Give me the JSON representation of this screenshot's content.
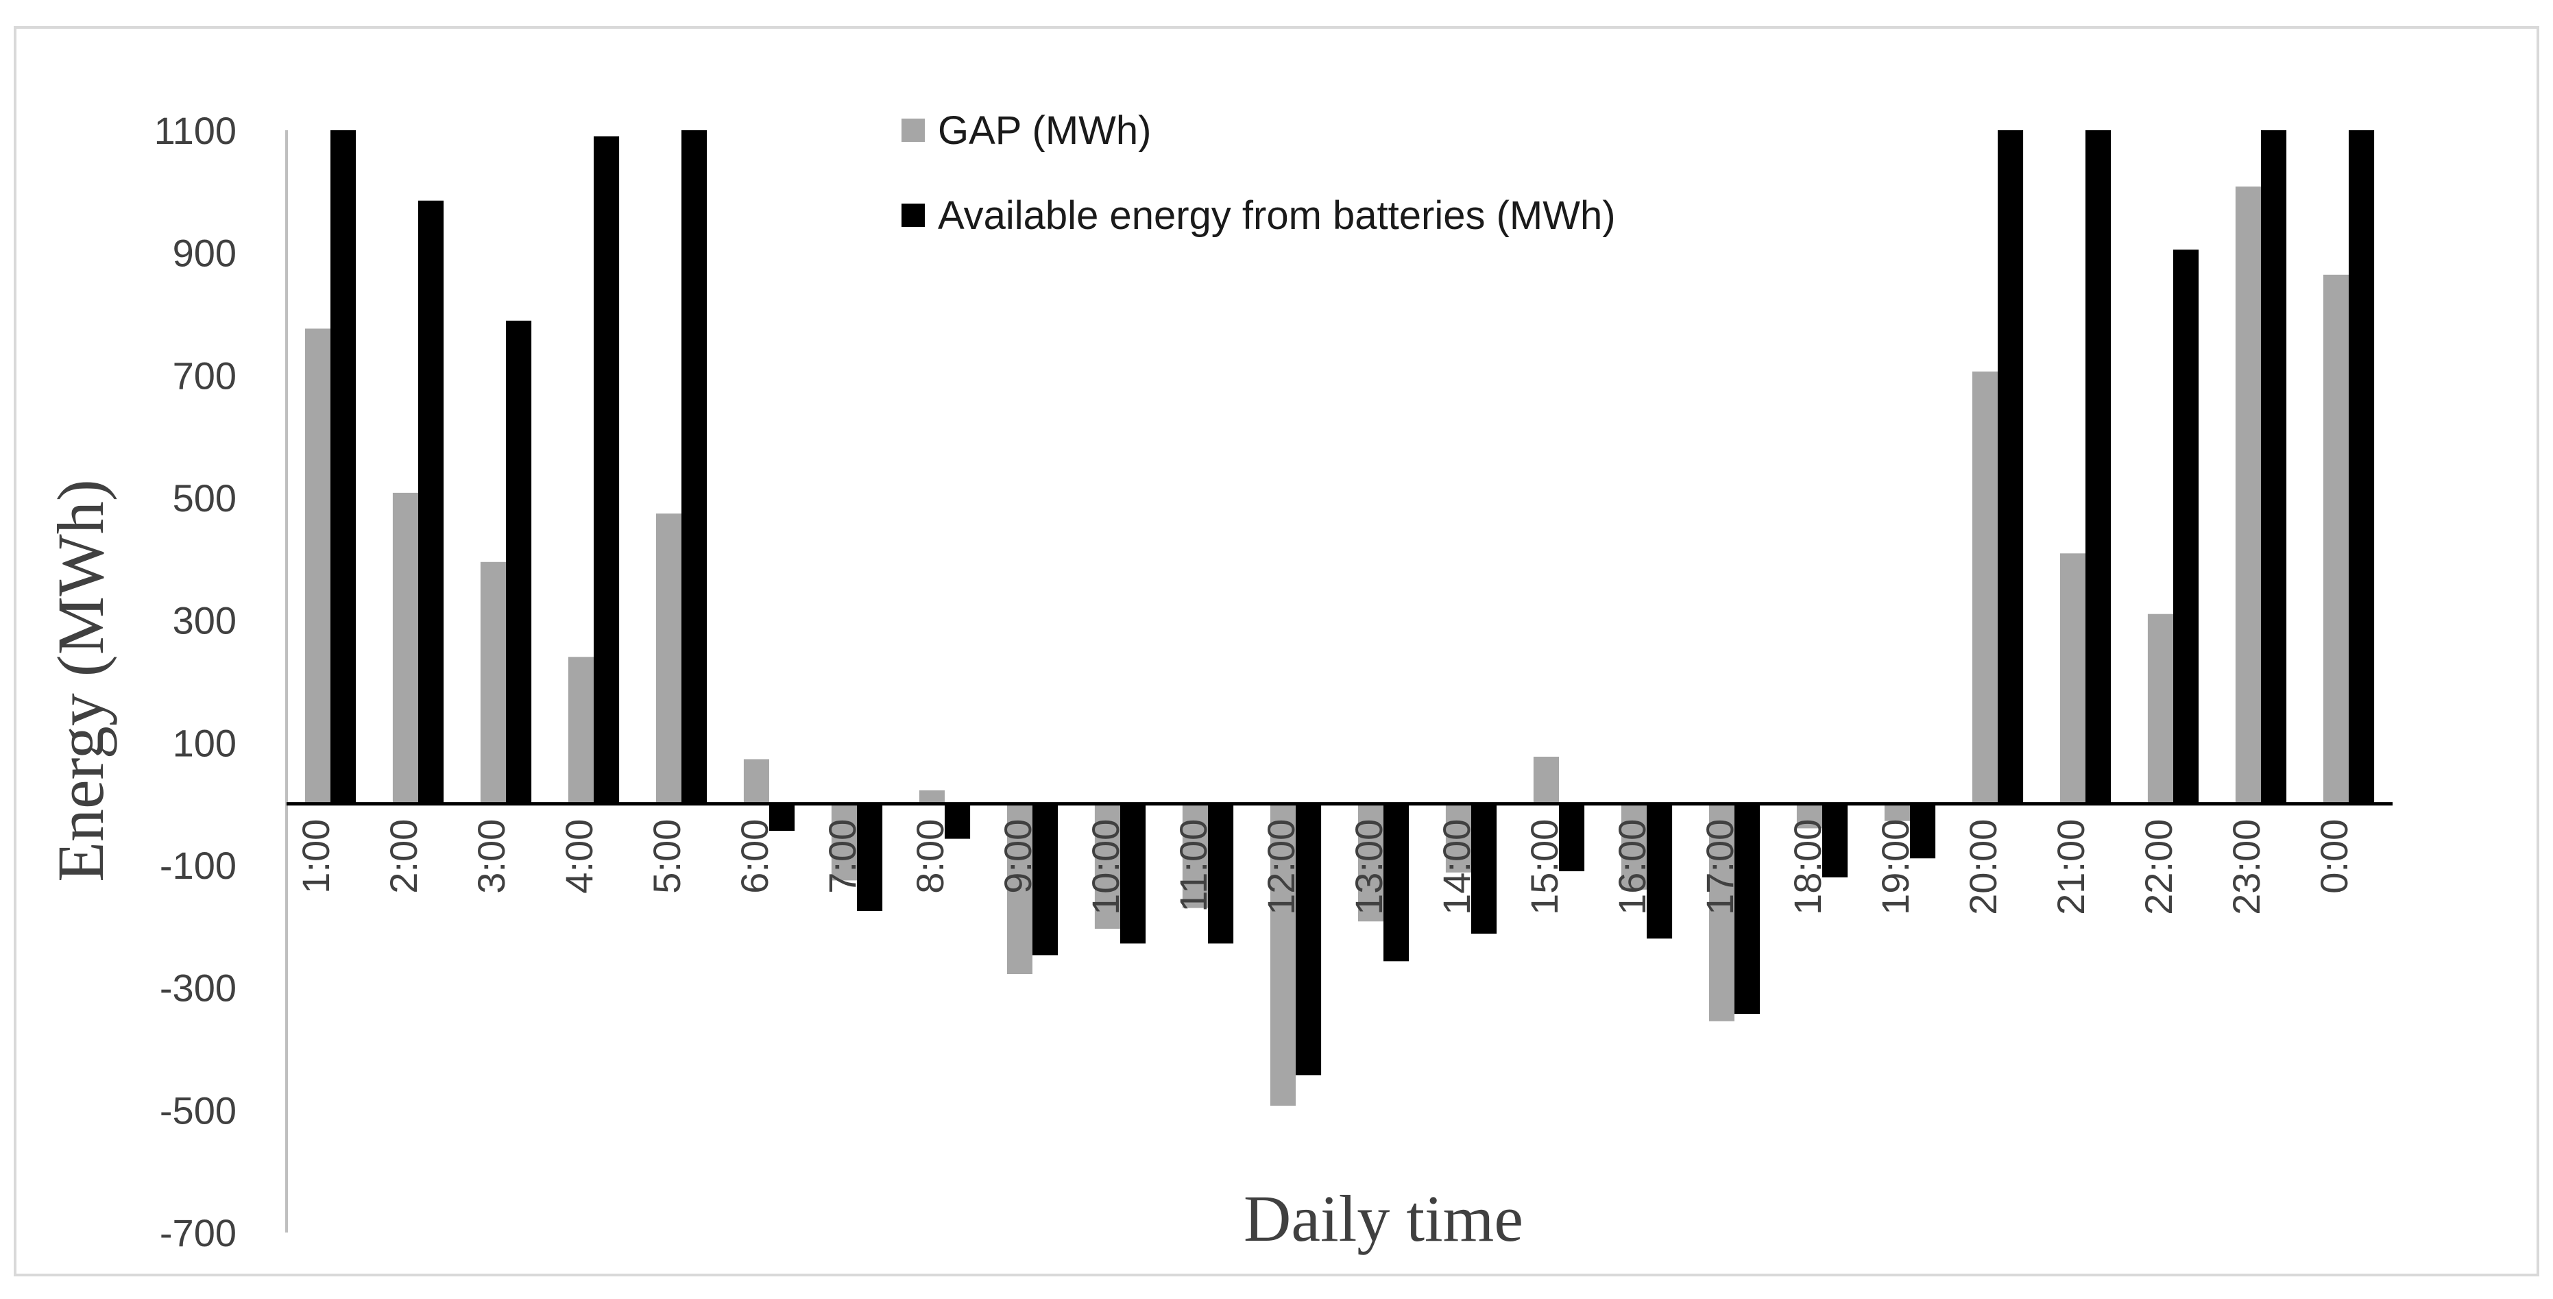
{
  "chart_data": {
    "type": "bar",
    "title": "",
    "xlabel": "Daily time",
    "ylabel": "Energy (MWh)",
    "ylim": [
      -700,
      1100
    ],
    "yticks": [
      -700,
      -500,
      -300,
      -100,
      100,
      300,
      500,
      700,
      900,
      1100
    ],
    "grid": false,
    "legend_position": "top-center",
    "categories": [
      "1:00",
      "2:00",
      "3:00",
      "4:00",
      "5:00",
      "6:00",
      "7:00",
      "8:00",
      "9:00",
      "10:00",
      "11:00",
      "12:00",
      "13:00",
      "14:00",
      "15:00",
      "16:00",
      "17:00",
      "18:00",
      "19:00",
      "20:00",
      "21:00",
      "22:00",
      "23:00",
      "0:00"
    ],
    "series": [
      {
        "name": "GAP (MWh)",
        "color": "#a6a6a6",
        "values": [
          776,
          508,
          395,
          240,
          474,
          73,
          -125,
          22,
          -278,
          -204,
          -170,
          -493,
          -192,
          -112,
          77,
          -140,
          -355,
          -40,
          -28,
          706,
          409,
          310,
          1008,
          864
        ]
      },
      {
        "name": "Available energy from batteries (MWh)",
        "color": "#000000",
        "values": [
          1100,
          985,
          789,
          1090,
          1100,
          -44,
          -175,
          -57,
          -247,
          -228,
          -228,
          -443,
          -257,
          -212,
          -110,
          -220,
          -343,
          -120,
          -89,
          1100,
          1100,
          905,
          1100,
          1100
        ]
      }
    ]
  }
}
